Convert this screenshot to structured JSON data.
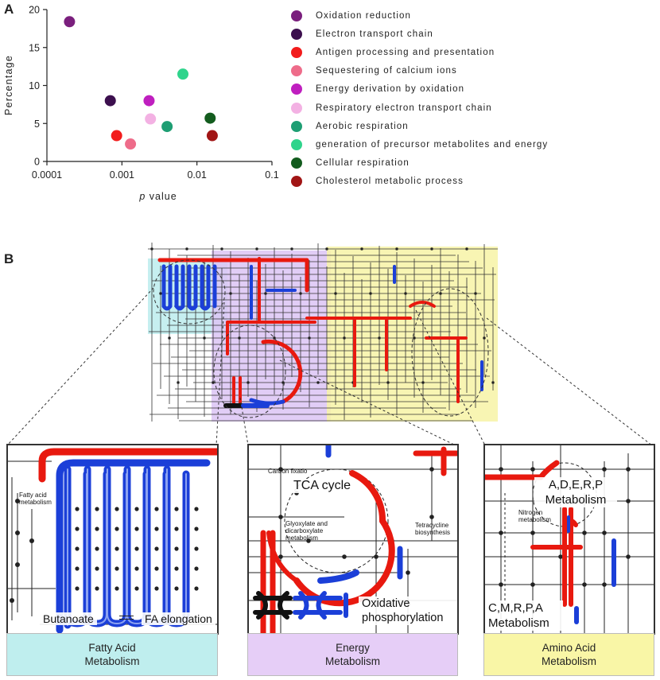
{
  "panels": {
    "a": "A",
    "b": "B"
  },
  "chart_data": {
    "type": "scatter",
    "xlabel_italic": "p",
    "xlabel_rest": "value",
    "ylabel": "Percentage",
    "x_scale": "log",
    "xlim": [
      0.0001,
      0.1
    ],
    "ylim": [
      0,
      20
    ],
    "xticks": [
      "0.0001",
      "0.001",
      "0.01",
      "0.1"
    ],
    "yticks": [
      "0",
      "5",
      "10",
      "15",
      "20"
    ],
    "legend_placement": "right",
    "series": [
      {
        "name": "Oxidation reduction",
        "color": "#7a1f7d",
        "x": 0.0002,
        "y": 18.4
      },
      {
        "name": "Electron transport chain",
        "color": "#3c0f4e",
        "x": 0.0007,
        "y": 8.0
      },
      {
        "name": "Antigen processing and presentation",
        "color": "#f21c1c",
        "x": 0.00085,
        "y": 3.4
      },
      {
        "name": "Sequestering of calcium ions",
        "color": "#ee6c8a",
        "x": 0.0013,
        "y": 2.3
      },
      {
        "name": "Energy derivation by oxidation",
        "color": "#bf1fbf",
        "x": 0.0023,
        "y": 8.0
      },
      {
        "name": "Respiratory electron transport chain",
        "color": "#f3b1e3",
        "x": 0.0024,
        "y": 5.6
      },
      {
        "name": "Aerobic respiration",
        "color": "#1e9e73",
        "x": 0.004,
        "y": 4.6
      },
      {
        "name": "generation of precursor metabolites and energy",
        "color": "#2fd48c",
        "x": 0.0065,
        "y": 11.5
      },
      {
        "name": "Cellular respiration",
        "color": "#135c1e",
        "x": 0.015,
        "y": 5.7
      },
      {
        "name": "Cholesterol metabolic process",
        "color": "#a11515",
        "x": 0.016,
        "y": 3.4
      }
    ]
  },
  "zooms": {
    "fatty": {
      "label_left": "Butanoate",
      "label_right": "FA elongation",
      "small_label": "Fatty acid metabolism"
    },
    "energy": {
      "label_tca": "TCA cycle",
      "label_ox": "Oxidative phosphorylation",
      "small_carbon": "Carbon fixatio",
      "small_glyox": "Glyoxylate and dicarboxylate metabolism",
      "small_tetra": "Tetracycline biosynthesis"
    },
    "amino": {
      "label_top": "A,D,E,R,P Metabolism",
      "label_bottom": "C,M,R,P,A Metabolism",
      "small_nitrogen": "Nitrogen metabolism"
    }
  },
  "captions": {
    "fatty": "Fatty Acid\nMetabolism",
    "energy": "Energy\nMetabolism",
    "amino": "Amino Acid\nMetabolism"
  },
  "colors": {
    "fatty_bg": "#bfeeee",
    "energy_bg": "#e6cef7",
    "amino_bg": "#f9f6a6",
    "pathway_red": "#e8190f",
    "pathway_blue": "#1b3fd8"
  }
}
